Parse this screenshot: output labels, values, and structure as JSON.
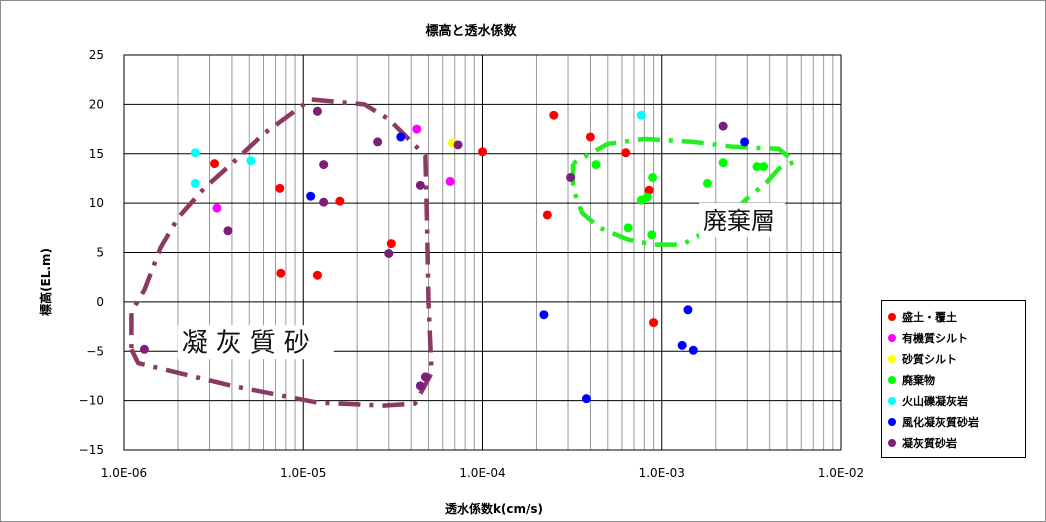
{
  "chart_data": {
    "type": "scatter",
    "title": "標高と透水係数",
    "xlabel": "透水係数k(cm/s)",
    "ylabel": "標高(EL.m)",
    "x_scale": "log",
    "xlim": [
      1e-06,
      0.01
    ],
    "ylim": [
      -15,
      25
    ],
    "x_ticks": [
      "1.0E-06",
      "1.0E-05",
      "1.0E-04",
      "1.0E-03",
      "1.0E-02"
    ],
    "y_ticks": [
      "25",
      "20",
      "15",
      "10",
      "5",
      "0",
      "−5",
      "−10",
      "−15"
    ],
    "grid": true,
    "legend_position": "right",
    "series": [
      {
        "name": "盛土・覆土",
        "color": "#ff0000",
        "points": [
          {
            "x": 3.2e-06,
            "y": 14
          },
          {
            "x": 7.4e-06,
            "y": 11.5
          },
          {
            "x": 7.5e-06,
            "y": 2.9
          },
          {
            "x": 1.2e-05,
            "y": 2.7
          },
          {
            "x": 1.6e-05,
            "y": 10.2
          },
          {
            "x": 3.1e-05,
            "y": 5.9
          },
          {
            "x": 0.0001,
            "y": 15.2
          },
          {
            "x": 0.00023,
            "y": 8.8
          },
          {
            "x": 0.00025,
            "y": 18.9
          },
          {
            "x": 0.0004,
            "y": 16.7
          },
          {
            "x": 0.00063,
            "y": 15.1
          },
          {
            "x": 0.00085,
            "y": 11.3
          },
          {
            "x": 0.0009,
            "y": -2.1
          }
        ]
      },
      {
        "name": "有機質シルト",
        "color": "#ff00ff",
        "points": [
          {
            "x": 3.3e-06,
            "y": 9.5
          },
          {
            "x": 4.3e-05,
            "y": 17.5
          },
          {
            "x": 6.6e-05,
            "y": 12.2
          }
        ]
      },
      {
        "name": "砂質シルト",
        "color": "#ffff00",
        "points": [
          {
            "x": 6.8e-05,
            "y": 16.1
          }
        ]
      },
      {
        "name": "廃棄物",
        "color": "#00ff00",
        "points": [
          {
            "x": 0.00043,
            "y": 13.9
          },
          {
            "x": 0.00065,
            "y": 7.5
          },
          {
            "x": 0.00077,
            "y": 10.3
          },
          {
            "x": 0.00083,
            "y": 10.6
          },
          {
            "x": 0.00088,
            "y": 6.8
          },
          {
            "x": 0.00089,
            "y": 12.6
          },
          {
            "x": 0.0018,
            "y": 12
          },
          {
            "x": 0.0022,
            "y": 14.1
          },
          {
            "x": 0.0034,
            "y": 13.7
          },
          {
            "x": 0.0037,
            "y": 13.7
          }
        ]
      },
      {
        "name": "火山礫凝灰岩",
        "color": "#00ffff",
        "points": [
          {
            "x": 2.5e-06,
            "y": 15.1
          },
          {
            "x": 2.5e-06,
            "y": 12
          },
          {
            "x": 5.1e-06,
            "y": 14.3
          },
          {
            "x": 0.00077,
            "y": 18.9
          }
        ]
      },
      {
        "name": "風化凝灰質砂岩",
        "color": "#0000ff",
        "points": [
          {
            "x": 1.1e-05,
            "y": 10.7
          },
          {
            "x": 3.5e-05,
            "y": 16.7
          },
          {
            "x": 0.00022,
            "y": -1.3
          },
          {
            "x": 0.00038,
            "y": -9.8
          },
          {
            "x": 0.0013,
            "y": -4.4
          },
          {
            "x": 0.0014,
            "y": -0.8
          },
          {
            "x": 0.0015,
            "y": -4.9
          },
          {
            "x": 0.0029,
            "y": 16.2
          }
        ]
      },
      {
        "name": "凝灰質砂岩",
        "color": "#7b1f7b",
        "points": [
          {
            "x": 1.3e-06,
            "y": -4.8
          },
          {
            "x": 3.8e-06,
            "y": 7.2
          },
          {
            "x": 1.2e-05,
            "y": 19.3
          },
          {
            "x": 1.3e-05,
            "y": 13.9
          },
          {
            "x": 1.3e-05,
            "y": 10.1
          },
          {
            "x": 2.6e-05,
            "y": 16.2
          },
          {
            "x": 3e-05,
            "y": 4.9
          },
          {
            "x": 4.5e-05,
            "y": 11.8
          },
          {
            "x": 4.5e-05,
            "y": -8.5
          },
          {
            "x": 4.8e-05,
            "y": -7.6
          },
          {
            "x": 7.3e-05,
            "y": 15.9
          },
          {
            "x": 0.00031,
            "y": 12.6
          },
          {
            "x": 0.0022,
            "y": 17.8
          }
        ]
      }
    ],
    "annotations": [
      {
        "text": "凝灰質砂",
        "x": 2.1e-06,
        "y": -5
      },
      {
        "text": "廃棄層",
        "x": 0.0017,
        "y": 7.4
      }
    ],
    "regions": [
      {
        "label": "凝灰質砂",
        "color": "#8b3a62",
        "points": [
          [
            1.1e-06,
            -4.8
          ],
          [
            1.2e-06,
            -6.2
          ],
          [
            4e-06,
            -8.5
          ],
          [
            1.2e-05,
            -10.2
          ],
          [
            2.8e-05,
            -10.5
          ],
          [
            4.2e-05,
            -10.3
          ],
          [
            5.2e-05,
            -7.2
          ],
          [
            5e-05,
            0
          ],
          [
            4.9e-05,
            8
          ],
          [
            4.8e-05,
            14.8
          ],
          [
            3e-05,
            18.5
          ],
          [
            2.2e-05,
            20
          ],
          [
            1.1e-05,
            20.5
          ],
          [
            6e-06,
            17
          ],
          [
            4e-06,
            14
          ],
          [
            2.8e-06,
            11.5
          ],
          [
            2e-06,
            8.5
          ],
          [
            1.6e-06,
            5.5
          ],
          [
            1.3e-06,
            1.2
          ],
          [
            1.1e-06,
            -1
          ],
          [
            1.1e-06,
            -4.8
          ]
        ]
      },
      {
        "label": "廃棄層",
        "color": "#22ee22",
        "points": [
          [
            0.00032,
            14
          ],
          [
            0.00032,
            11.5
          ],
          [
            0.00036,
            9
          ],
          [
            0.00045,
            7.5
          ],
          [
            0.00065,
            6.3
          ],
          [
            0.0009,
            5.8
          ],
          [
            0.0013,
            5.8
          ],
          [
            0.0018,
            7.2
          ],
          [
            0.0023,
            8.5
          ],
          [
            0.003,
            10.5
          ],
          [
            0.0038,
            12
          ],
          [
            0.0045,
            13.5
          ],
          [
            0.0055,
            14.2
          ],
          [
            0.0045,
            15.5
          ],
          [
            0.0025,
            15.7
          ],
          [
            0.0015,
            16.2
          ],
          [
            0.0008,
            16.5
          ],
          [
            0.0005,
            16
          ],
          [
            0.00038,
            14.8
          ],
          [
            0.00032,
            14
          ]
        ]
      }
    ]
  }
}
